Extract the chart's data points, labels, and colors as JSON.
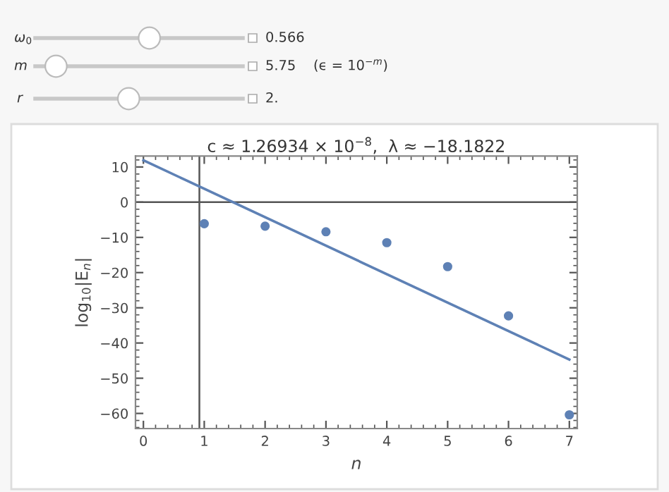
{
  "chart_data": {
    "type": "scatter",
    "title": "c ≈ 1.26934 × 10$^{−8}$,  λ ≈ −18.1822",
    "xlabel": "n",
    "ylabel": "log$_{10}$|E$_{n}$|",
    "series": [
      {
        "color": "#5e81b5",
        "x": [
          1,
          2,
          3,
          4,
          5,
          6,
          7
        ],
        "values": [
          -6.1,
          -6.8,
          -8.4,
          -11.5,
          -18.3,
          -32.3,
          -60.4
        ],
        "marker": "circle"
      },
      {
        "type": "line",
        "color": "#5e81b5",
        "x": [
          0,
          7
        ],
        "values": [
          11.9,
          -44.7
        ],
        "line_style": "solid"
      }
    ],
    "xlim": [
      -0.13,
      7.13
    ],
    "ylim": [
      -64.3,
      13.1
    ],
    "xticks": [
      0,
      1,
      2,
      3,
      4,
      5,
      6,
      7
    ],
    "yticks": [
      10,
      0,
      -10,
      -20,
      -30,
      -40,
      -50,
      -60
    ],
    "ref_lines": [
      {
        "axis": "x",
        "value": 0.92,
        "color": "#555555"
      },
      {
        "axis": "y",
        "value": 0,
        "color": "#555555"
      }
    ],
    "grid": false,
    "annotations": [
      "ω$_{0}$",
      "0.566",
      "m",
      "5.75",
      "(ϵ = 10$^{−m}$)",
      "r",
      "2."
    ]
  }
}
